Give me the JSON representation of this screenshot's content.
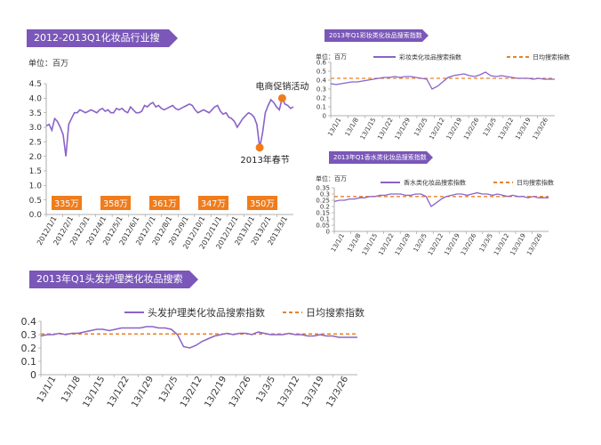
{
  "colors": {
    "accent": "#7a57b8",
    "series": "#8a63c7",
    "avg": "#e8822a",
    "badge": "#f07c1c",
    "axis": "#999999"
  },
  "chart_data": [
    {
      "id": "industry",
      "type": "line",
      "title": "2012-2013Q1化妆品行业搜索指数",
      "unit_label": "单位：百万",
      "ylim": [
        0,
        4.5
      ],
      "yticks": [
        "0.0",
        "0.5",
        "1.0",
        "1.5",
        "2.0",
        "2.5",
        "3.0",
        "3.5",
        "4.0",
        "4.5"
      ],
      "x_labels": [
        "2012/1/1",
        "2012/2/1",
        "2012/3/1",
        "2012/4/1",
        "2012/5/1",
        "2012/6/1",
        "2012/7/1",
        "2012/8/1",
        "2012/9/1",
        "2012/10/1",
        "2012/11/1",
        "2012/12/1",
        "2013/1/1",
        "2013/2/1",
        "2013/3/1"
      ],
      "series": [
        {
          "name": "化妆品行业搜索指数",
          "values": [
            3.05,
            3.1,
            2.9,
            3.3,
            3.2,
            3.0,
            2.75,
            2.0,
            3.1,
            3.3,
            3.5,
            3.5,
            3.6,
            3.55,
            3.5,
            3.55,
            3.6,
            3.55,
            3.5,
            3.6,
            3.65,
            3.55,
            3.6,
            3.5,
            3.5,
            3.65,
            3.6,
            3.65,
            3.55,
            3.5,
            3.7,
            3.6,
            3.5,
            3.5,
            3.55,
            3.75,
            3.7,
            3.8,
            3.85,
            3.7,
            3.75,
            3.65,
            3.6,
            3.65,
            3.7,
            3.75,
            3.65,
            3.6,
            3.65,
            3.7,
            3.75,
            3.8,
            3.75,
            3.6,
            3.5,
            3.55,
            3.6,
            3.55,
            3.5,
            3.6,
            3.7,
            3.75,
            3.55,
            3.45,
            3.5,
            3.35,
            3.3,
            3.2,
            3.0,
            3.15,
            3.3,
            3.4,
            3.5,
            3.45,
            3.35,
            3.1,
            2.3,
            2.8,
            3.5,
            3.75,
            3.95,
            3.85,
            3.7,
            3.6,
            4.0,
            3.8,
            3.75,
            3.65,
            3.7
          ]
        }
      ],
      "badges": [
        "335万",
        "358万",
        "361万",
        "347万",
        "350万"
      ],
      "annotations": [
        {
          "text": "电商促销活动",
          "x_index": 84,
          "value": 4.0
        },
        {
          "text": "2013年春节",
          "x_index": 76,
          "value": 2.3
        }
      ]
    },
    {
      "id": "color-cosmetics",
      "type": "line",
      "title": "2013年Q1彩妆类化妆品搜索指数",
      "unit_label": "单位：百万",
      "ylim": [
        0,
        0.6
      ],
      "yticks": [
        "0",
        "0.1",
        "0.2",
        "0.3",
        "0.4",
        "0.5",
        "0.6"
      ],
      "x_labels": [
        "13/1/1",
        "13/1/8",
        "13/1/15",
        "13/1/22",
        "13/1/29",
        "13/2/5",
        "13/2/12",
        "13/2/19",
        "13/2/26",
        "13/3/5",
        "13/3/12",
        "13/3/19",
        "13/3/26"
      ],
      "series": [
        {
          "name": "彩妆类化妆品搜索指数",
          "values": [
            0.36,
            0.35,
            0.36,
            0.37,
            0.38,
            0.38,
            0.39,
            0.4,
            0.41,
            0.42,
            0.43,
            0.43,
            0.44,
            0.43,
            0.44,
            0.44,
            0.43,
            0.42,
            0.41,
            0.3,
            0.33,
            0.38,
            0.43,
            0.45,
            0.46,
            0.47,
            0.45,
            0.44,
            0.46,
            0.49,
            0.45,
            0.44,
            0.45,
            0.44,
            0.43,
            0.42,
            0.42,
            0.42,
            0.41,
            0.42,
            0.41,
            0.41,
            0.41
          ]
        }
      ],
      "avg": {
        "name": "日均搜索指数",
        "value": 0.42
      }
    },
    {
      "id": "perfume",
      "type": "line",
      "title": "2013年Q1香水类化妆品搜索指数",
      "unit_label": "单位：百万",
      "ylim": [
        0,
        0.35
      ],
      "yticks": [
        "0",
        "0.05",
        "0.1",
        "0.15",
        "0.2",
        "0.25",
        "0.3",
        "0.35"
      ],
      "x_labels": [
        "13/1/1",
        "13/1/8",
        "13/1/15",
        "13/1/22",
        "13/1/29",
        "13/2/5",
        "13/2/12",
        "13/2/19",
        "13/2/26",
        "13/3/5",
        "13/3/12",
        "13/3/19",
        "13/3/26"
      ],
      "series": [
        {
          "name": "香水类化妆品搜索指数",
          "values": [
            0.24,
            0.25,
            0.25,
            0.26,
            0.26,
            0.27,
            0.27,
            0.28,
            0.28,
            0.29,
            0.29,
            0.3,
            0.3,
            0.3,
            0.29,
            0.29,
            0.3,
            0.3,
            0.28,
            0.2,
            0.23,
            0.26,
            0.28,
            0.29,
            0.3,
            0.3,
            0.29,
            0.3,
            0.31,
            0.3,
            0.3,
            0.29,
            0.3,
            0.29,
            0.28,
            0.29,
            0.28,
            0.28,
            0.27,
            0.28,
            0.27,
            0.27,
            0.27
          ]
        }
      ],
      "avg": {
        "name": "日均搜索指数",
        "value": 0.28
      }
    },
    {
      "id": "hair-care",
      "type": "line",
      "title": "2013年Q1头发护理类化妆品搜索指数",
      "unit_label": "单位：百万",
      "ylim": [
        0,
        0.4
      ],
      "yticks": [
        "0",
        "0.1",
        "0.2",
        "0.3",
        "0.4"
      ],
      "x_labels": [
        "13/1/1",
        "13/1/8",
        "13/1/15",
        "13/1/22",
        "13/1/29",
        "13/2/5",
        "13/2/12",
        "13/2/19",
        "13/2/26",
        "13/3/5",
        "13/3/12",
        "13/3/19",
        "13/3/26"
      ],
      "series": [
        {
          "name": "头发护理类化妆品搜索指数",
          "values": [
            0.29,
            0.3,
            0.3,
            0.31,
            0.3,
            0.31,
            0.31,
            0.32,
            0.33,
            0.34,
            0.34,
            0.33,
            0.34,
            0.35,
            0.35,
            0.35,
            0.35,
            0.36,
            0.36,
            0.35,
            0.35,
            0.34,
            0.3,
            0.21,
            0.2,
            0.22,
            0.25,
            0.27,
            0.29,
            0.3,
            0.31,
            0.3,
            0.31,
            0.31,
            0.3,
            0.32,
            0.31,
            0.3,
            0.3,
            0.3,
            0.31,
            0.3,
            0.3,
            0.29,
            0.29,
            0.3,
            0.29,
            0.29,
            0.28,
            0.28,
            0.28,
            0.28
          ]
        }
      ],
      "avg": {
        "name": "日均搜索指数",
        "value": 0.305
      }
    }
  ]
}
